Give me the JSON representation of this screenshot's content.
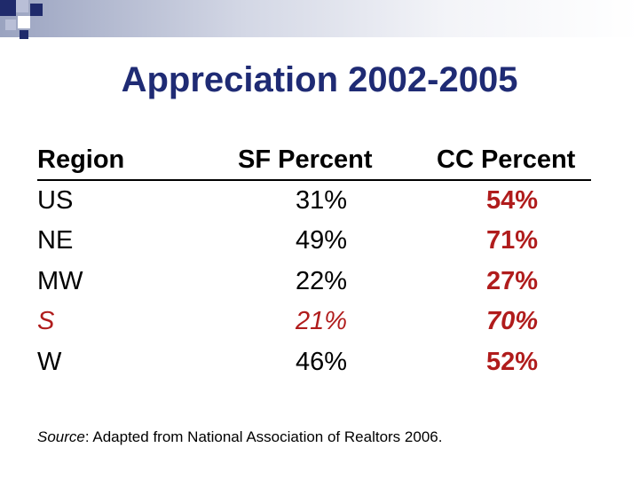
{
  "slide": {
    "title": "Appreciation 2002-2005"
  },
  "table": {
    "headers": {
      "region": "Region",
      "sf": "SF Percent",
      "cc": "CC Percent"
    },
    "rows": [
      {
        "region": "US",
        "sf": "31%",
        "cc": "54%"
      },
      {
        "region": "NE",
        "sf": "49%",
        "cc": "71%"
      },
      {
        "region": "MW",
        "sf": "22%",
        "cc": "27%"
      },
      {
        "region": "S",
        "sf": "21%",
        "cc": "70%"
      },
      {
        "region": "W",
        "sf": "46%",
        "cc": "52%"
      }
    ]
  },
  "source": {
    "label": "Source",
    "text": ": Adapted from National Association of Realtors 2006."
  },
  "colors": {
    "title": "#1f2b74",
    "highlight": "#b01c1c",
    "accent_navy": "#1f2a6b",
    "accent_lavender": "#b9bfd7"
  }
}
